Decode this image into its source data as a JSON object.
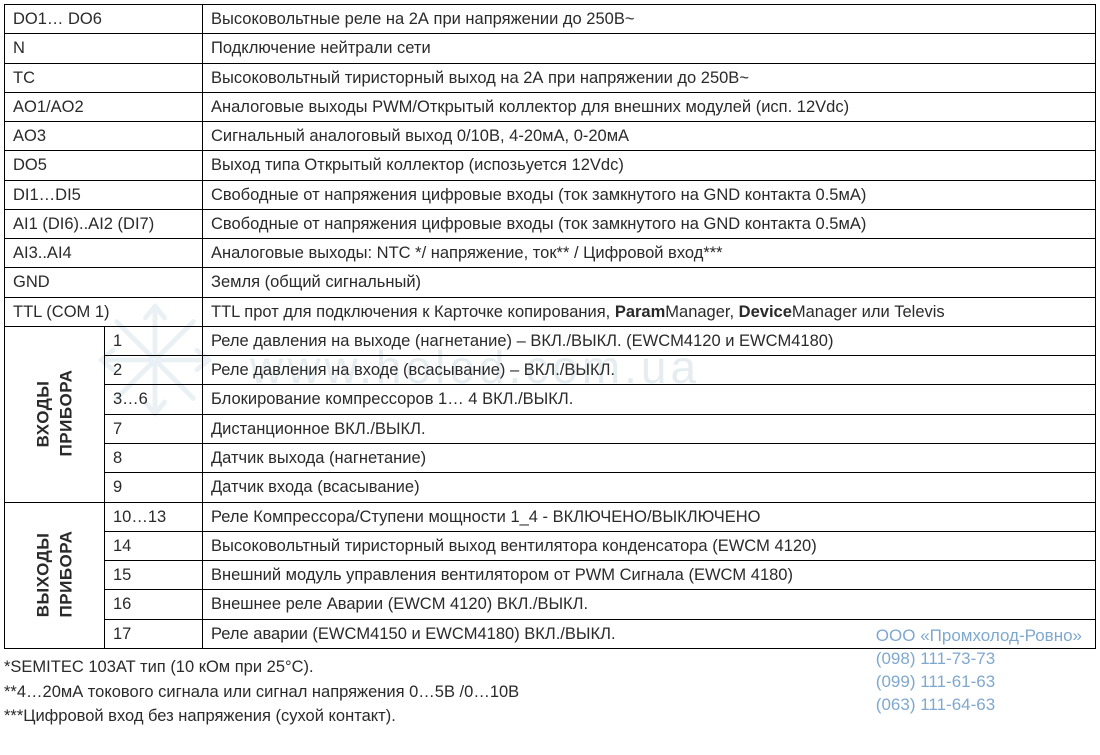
{
  "table": {
    "rows_simple": [
      {
        "k": "DO1… DO6",
        "v": "Высоковольтные реле на 2А при напряжении до 250В~"
      },
      {
        "k": "N",
        "v": "Подключение нейтрали сети"
      },
      {
        "k": "TC",
        "v": "Высоковольтный тиристорный выход на 2А при напряжении до 250В~"
      },
      {
        "k": "AO1/AO2",
        "v": "Аналоговые выходы PWM/Открытый коллектор для внешних модулей (исп.  12Vdc)"
      },
      {
        "k": "AO3",
        "v": "Сигнальный аналоговый выход 0/10В, 4-20мА, 0-20мА"
      },
      {
        "k": "DO5",
        "v": "Выход типа Открытый коллектор (испозьуется  12Vdc)"
      },
      {
        "k": "DI1…DI5",
        "v": "Свободные от напряжения цифровые входы (ток замкнутого на GND контакта 0.5мА)"
      },
      {
        "k": "AI1 (DI6)..AI2 (DI7)",
        "v": "Свободные от напряжения цифровые входы (ток замкнутого на GND контакта 0.5мА)"
      },
      {
        "k": "AI3..AI4",
        "v": "Аналоговые выходы: NTC */ напряжение, ток** / Цифровой вход***"
      },
      {
        "k": "GND",
        "v": "Земля (общий сигнальный)"
      }
    ],
    "ttl": {
      "k": "TTL (COM 1)",
      "v_pre": "TTL прот для подключения к Карточке копирования, ",
      "b1": "Param",
      "mid1": "Manager, ",
      "b2": "Device",
      "mid2": "Manager или Televis"
    },
    "inputs": {
      "header": "ВХОДЫ ПРИБОРА",
      "rows": [
        {
          "n": "1",
          "v": "Реле давления на выходе (нагнетание) – ВКЛ./ВЫКЛ. (EWCM4120 и EWCM4180)"
        },
        {
          "n": "2",
          "v": "Реле давления на входе (всасывание) – ВКЛ./ВЫКЛ."
        },
        {
          "n": "3…6",
          "v": "Блокирование компрессоров 1… 4 ВКЛ./ВЫКЛ."
        },
        {
          "n": "7",
          "v": "Дистанционное ВКЛ./ВЫКЛ."
        },
        {
          "n": "8",
          "v": "Датчик выхода (нагнетание)"
        },
        {
          "n": "9",
          "v": "Датчик входа (всасывание)"
        }
      ]
    },
    "outputs": {
      "header": "ВЫХОДЫ ПРИБОРА",
      "rows": [
        {
          "n": "10…13",
          "v": "Реле Компрессора/Ступени мощности 1_4 -  ВКЛЮЧЕНО/ВЫКЛЮЧЕНО"
        },
        {
          "n": "14",
          "v": "Высоковольтный тиристорный выход вентилятора конденсатора (EWCM 4120)"
        },
        {
          "n": "15",
          "v": "Внешний модуль управления вентилятором от PWM Сигнала (EWCM 4180)"
        },
        {
          "n": "16",
          "v": "Внешнее реле Аварии (EWCM 4120) ВКЛ./ВЫКЛ."
        },
        {
          "n": "17",
          "v": "Реле аварии (EWCM4150 и EWCM4180) ВКЛ./ВЫКЛ."
        }
      ]
    }
  },
  "notes": {
    "l1": "*SEMITEC 103AT тип (10 кОм при 25°С).",
    "l2": "**4…20мА токового сигнала или сигнал напряжения 0…5В /0…10В",
    "l3": "***Цифровой вход без напряжения (сухой контакт)."
  },
  "contact": {
    "firm": "ООО «Промхолод-Ровно»",
    "p1": "(098) 111-73-73",
    "p2": "(099) 111-61-63",
    "p3": "(063) 111-64-63"
  },
  "watermark": "www.holod.com.ua",
  "style": {
    "border_color": "#000000",
    "text_color": "#2a2a2a",
    "contact_color": "#7fa8cf",
    "watermark_color": "#e6edf0",
    "font_size_pt": 13
  }
}
